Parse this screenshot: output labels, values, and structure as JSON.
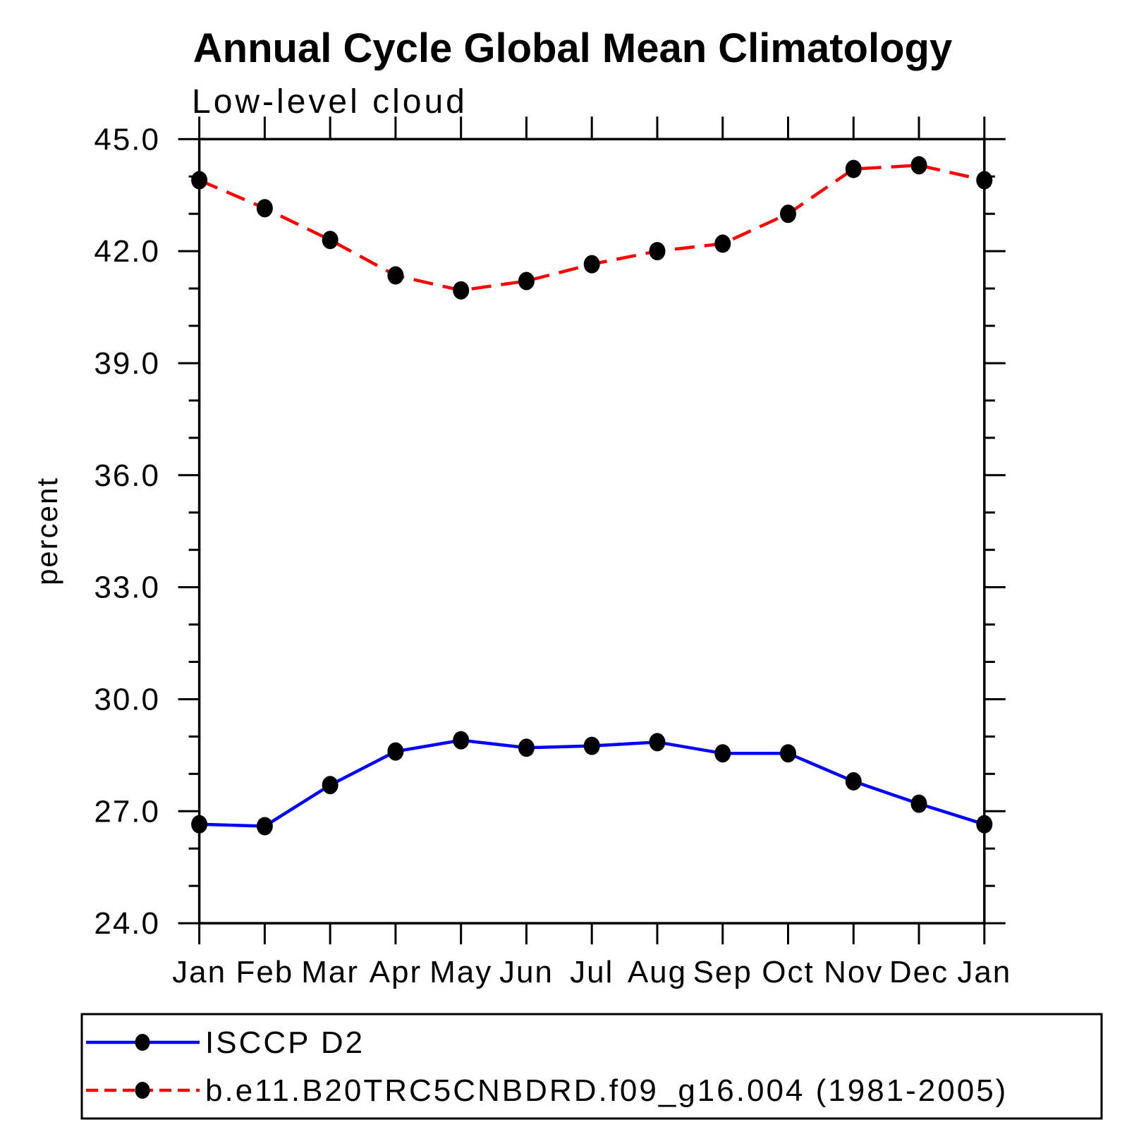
{
  "page": {
    "background": "#ffffff"
  },
  "title": "Annual Cycle Global Mean Climatology",
  "subtitle": "Low-level cloud",
  "y_axis": {
    "label": "percent",
    "tick_labels": [
      "45.0",
      "42.0",
      "39.0",
      "36.0",
      "33.0",
      "30.0",
      "27.0",
      "24.0"
    ]
  },
  "x_axis": {
    "tick_labels": [
      "Jan",
      "Feb",
      "Mar",
      "Apr",
      "May",
      "Jun",
      "Jul",
      "Aug",
      "Sep",
      "Oct",
      "Nov",
      "Dec",
      "Jan"
    ]
  },
  "legend": {
    "items": [
      {
        "label": "ISCCP D2",
        "color": "#0000ff",
        "line_style": "solid",
        "marker": "filled-circle",
        "marker_color": "#000000"
      },
      {
        "label": "b.e11.B20TRC5CNBDRD.f09_g16.004 (1981-2005)",
        "color": "#ff0000",
        "line_style": "dashed",
        "marker": "filled-circle",
        "marker_color": "#000000"
      }
    ]
  },
  "chart_data": {
    "type": "line",
    "title": "Annual Cycle Global Mean Climatology",
    "subtitle": "Low-level cloud",
    "ylabel": "percent",
    "xlabel": "",
    "categories": [
      "Jan",
      "Feb",
      "Mar",
      "Apr",
      "May",
      "Jun",
      "Jul",
      "Aug",
      "Sep",
      "Oct",
      "Nov",
      "Dec",
      "Jan"
    ],
    "series": [
      {
        "name": "ISCCP D2",
        "color": "#0000ff",
        "line_style": "solid",
        "marker": "filled-circle",
        "marker_color": "#000000",
        "values": [
          26.65,
          26.6,
          27.7,
          28.6,
          28.9,
          28.7,
          28.75,
          28.85,
          28.55,
          28.55,
          27.8,
          27.2,
          26.65
        ]
      },
      {
        "name": "b.e11.B20TRC5CNBDRD.f09_g16.004 (1981-2005)",
        "color": "#ff0000",
        "line_style": "dashed",
        "marker": "filled-circle",
        "marker_color": "#000000",
        "values": [
          43.9,
          43.15,
          42.3,
          41.35,
          40.95,
          41.2,
          41.65,
          42.0,
          42.2,
          43.0,
          44.2,
          44.3,
          43.9
        ]
      }
    ],
    "ylim": [
      24.0,
      45.0
    ],
    "y_major_ticks": [
      24,
      27,
      30,
      33,
      36,
      39,
      42,
      45
    ],
    "y_minor_tick_interval": 1.0,
    "grid": false,
    "legend_position": "bottom-box",
    "tick_direction": "out"
  }
}
